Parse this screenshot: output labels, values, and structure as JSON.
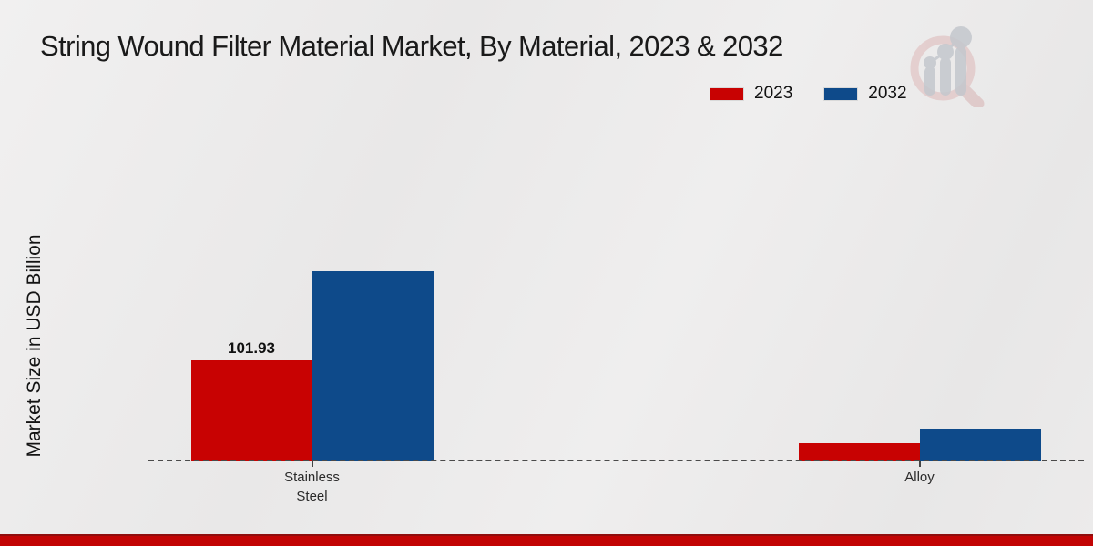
{
  "title": "String Wound Filter Material Market, By Material, 2023 & 2032",
  "y_axis_title": "Market Size in USD Billion",
  "footer_accent_color": "#c20404",
  "logo_name": "bar-chart-magnifier-logo",
  "chart_data": {
    "type": "bar",
    "title": "String Wound Filter Material Market, By Material, 2023 & 2032",
    "xlabel": "",
    "ylabel": "Market Size in USD Billion",
    "categories": [
      "Stainless Steel",
      "Alloy"
    ],
    "series": [
      {
        "name": "2023",
        "color": "#c80202",
        "values": [
          101.93,
          18.4
        ]
      },
      {
        "name": "2032",
        "color": "#0e4a8a",
        "values": [
          191.9,
          33.0
        ]
      }
    ],
    "ylim": [
      0,
      210
    ],
    "grid": false,
    "axis_style": "dashed-baseline-only",
    "legend_position": "top-right",
    "data_labels": [
      {
        "series": "2023",
        "category": "Stainless Steel",
        "text": "101.93"
      }
    ]
  }
}
